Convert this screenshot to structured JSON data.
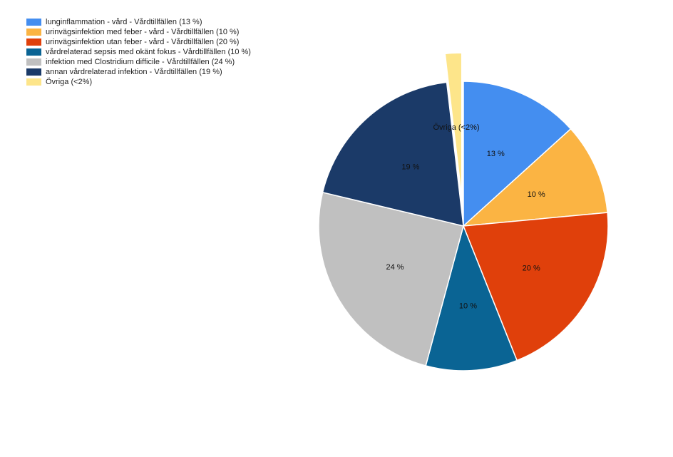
{
  "chart_data": {
    "type": "pie",
    "series": [
      {
        "name": "lunginflammation - vård - Vårdtillfällen (13 %)",
        "value": 13,
        "label": "13 %",
        "color": "#448ef0"
      },
      {
        "name": "urinvägsinfektion med feber - vård - Vårdtillfällen (10 %)",
        "value": 10,
        "label": "10 %",
        "color": "#fbb443"
      },
      {
        "name": "urinvägsinfektion utan feber - vård - Vårdtillfällen (20 %)",
        "value": 20,
        "label": "20 %",
        "color": "#e0400b"
      },
      {
        "name": "vårdrelaterad sepsis med okänt fokus - Vårdtillfällen (10 %)",
        "value": 10,
        "label": "10 %",
        "color": "#0a6494"
      },
      {
        "name": "infektion med Clostridium difficile - Vårdtillfällen (24 %)",
        "value": 24,
        "label": "24 %",
        "color": "#c0c0c0"
      },
      {
        "name": "annan vårdrelaterad infektion - Vårdtillfällen (19 %)",
        "value": 19,
        "label": "19 %",
        "color": "#1b3a68"
      },
      {
        "name": "Övriga (<2%)",
        "value": 1.8,
        "label": "Övriga (<2%)",
        "color": "#fde58a",
        "exploded": true
      }
    ],
    "legend_position": "top-left"
  }
}
